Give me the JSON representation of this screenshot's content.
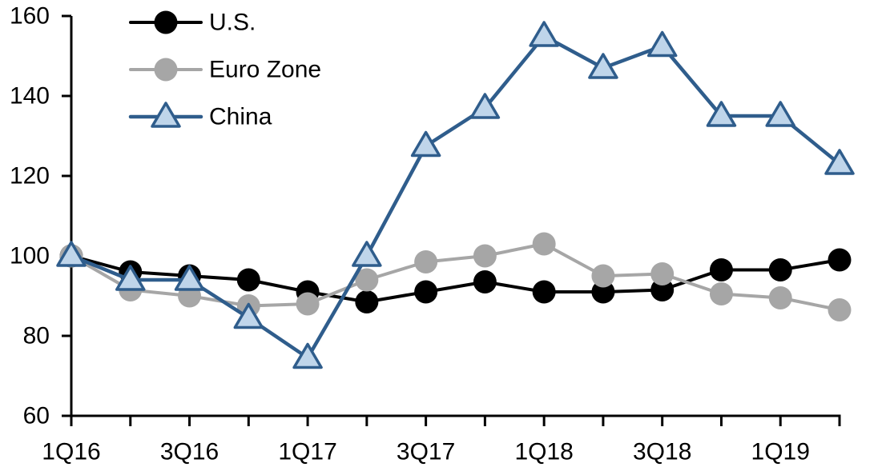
{
  "chart_data": {
    "type": "line",
    "title": "",
    "xlabel": "",
    "ylabel": "",
    "categories": [
      "1Q16",
      "2Q16",
      "3Q16",
      "4Q16",
      "1Q17",
      "2Q17",
      "3Q17",
      "4Q17",
      "1Q18",
      "2Q18",
      "3Q18",
      "4Q18",
      "1Q19",
      "2Q19"
    ],
    "x_tick_labels_shown": [
      "1Q16",
      "3Q16",
      "1Q17",
      "3Q17",
      "1Q18",
      "3Q18",
      "1Q19"
    ],
    "series": [
      {
        "name": "U.S.",
        "marker": "circle",
        "line_color": "#000000",
        "marker_fill": "#000000",
        "marker_stroke": "#000000",
        "values": [
          100,
          96,
          95,
          94,
          91,
          88.5,
          91,
          93.5,
          91,
          91,
          91.5,
          96.5,
          96.5,
          99
        ]
      },
      {
        "name": "Euro Zone",
        "marker": "circle",
        "line_color": "#A6A6A6",
        "marker_fill": "#A6A6A6",
        "marker_stroke": "#A6A6A6",
        "values": [
          100,
          91.5,
          90,
          87.5,
          88,
          94,
          98.5,
          100,
          103,
          95,
          95.5,
          90.5,
          89.5,
          86.5
        ]
      },
      {
        "name": "China",
        "marker": "triangle",
        "line_color": "#2F5D8C",
        "marker_fill": "#BFD5EA",
        "marker_stroke": "#2F5D8C",
        "values": [
          100,
          94,
          94,
          84.5,
          74.5,
          100,
          127.5,
          137,
          155,
          147,
          152.5,
          135,
          135,
          123
        ]
      }
    ],
    "ylim": [
      60,
      160
    ],
    "yticks": [
      60,
      80,
      100,
      120,
      140,
      160
    ],
    "grid": false,
    "legend_position": "top-left",
    "legend_entries": [
      "U.S.",
      "Euro Zone",
      "China"
    ]
  }
}
